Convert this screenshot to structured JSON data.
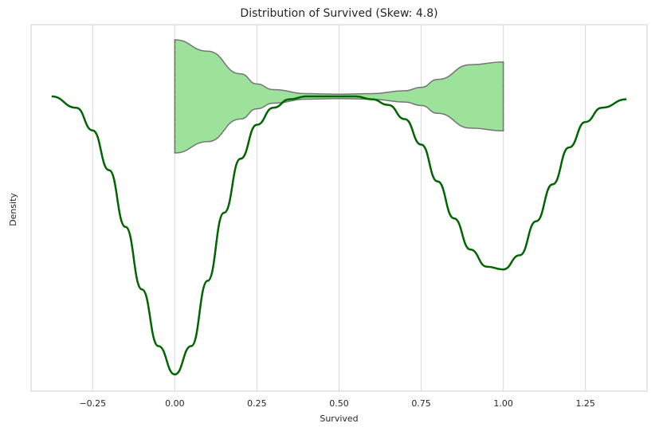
{
  "chart_data": {
    "type": "violin",
    "title": "Distribution of Survived (Skew: 4.8)",
    "xlabel": "Survived",
    "ylabel": "Density",
    "xlim": [
      -0.4375,
      1.4375
    ],
    "xticks": [
      -0.25,
      0.0,
      0.25,
      0.5,
      0.75,
      1.0,
      1.25
    ],
    "xtick_labels": [
      "−0.25",
      "0.00",
      "0.25",
      "0.50",
      "0.75",
      "1.00",
      "1.25"
    ],
    "grid": "vertical",
    "violin": {
      "range": [
        0.0,
        1.0
      ],
      "widths": [
        [
          0.0,
          1.0
        ],
        [
          0.1,
          0.8
        ],
        [
          0.2,
          0.4
        ],
        [
          0.25,
          0.22
        ],
        [
          0.3,
          0.12
        ],
        [
          0.4,
          0.05
        ],
        [
          0.5,
          0.04
        ],
        [
          0.6,
          0.05
        ],
        [
          0.7,
          0.1
        ],
        [
          0.75,
          0.16
        ],
        [
          0.8,
          0.3
        ],
        [
          0.9,
          0.56
        ],
        [
          1.0,
          0.61
        ]
      ],
      "fill_color": "#9de29b",
      "edge_color": "#757575"
    },
    "kde": {
      "x": [
        -0.375,
        -0.3,
        -0.25,
        -0.2,
        -0.15,
        -0.1,
        -0.05,
        0.0,
        0.05,
        0.1,
        0.15,
        0.2,
        0.25,
        0.3,
        0.35,
        0.4,
        0.45,
        0.5,
        0.55,
        0.6,
        0.65,
        0.7,
        0.75,
        0.8,
        0.85,
        0.9,
        0.95,
        1.0,
        1.05,
        1.1,
        1.15,
        1.2,
        1.25,
        1.3,
        1.375
      ],
      "y": [
        0.0,
        0.04,
        0.12,
        0.26,
        0.46,
        0.68,
        0.88,
        0.98,
        0.88,
        0.65,
        0.41,
        0.22,
        0.1,
        0.04,
        0.01,
        0.0,
        0.0,
        0.0,
        0.0,
        0.01,
        0.03,
        0.08,
        0.17,
        0.3,
        0.43,
        0.54,
        0.6,
        0.61,
        0.56,
        0.44,
        0.31,
        0.18,
        0.09,
        0.04,
        0.01
      ],
      "color": "#006400"
    }
  }
}
